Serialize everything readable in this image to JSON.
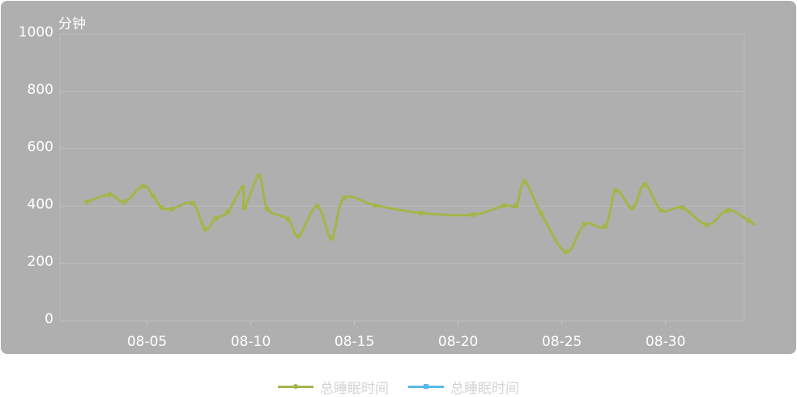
{
  "chart_data": {
    "type": "line",
    "title": "",
    "ylabel": "分钟",
    "xlabel": "",
    "ylim": [
      0,
      1000
    ],
    "yticks": [
      0,
      200,
      400,
      600,
      800,
      1000
    ],
    "xlim": [
      0.8,
      33.8
    ],
    "xticks": [
      {
        "label": "08-05",
        "x": 5
      },
      {
        "label": "08-10",
        "x": 10
      },
      {
        "label": "08-15",
        "x": 15
      },
      {
        "label": "08-20",
        "x": 20
      },
      {
        "label": "08-25",
        "x": 25
      },
      {
        "label": "08-30",
        "x": 30
      }
    ],
    "series": [
      {
        "name": "总睡眠时间",
        "color": "#a2b64a",
        "marker": "circle",
        "points": [
          [
            2.1,
            415
          ],
          [
            3.2,
            440
          ],
          [
            3.9,
            415
          ],
          [
            4.8,
            470
          ],
          [
            5.3,
            435
          ],
          [
            5.7,
            395
          ],
          [
            6.2,
            390
          ],
          [
            7.2,
            410
          ],
          [
            7.8,
            320
          ],
          [
            8.3,
            357
          ],
          [
            8.9,
            380
          ],
          [
            9.6,
            465
          ],
          [
            9.7,
            395
          ],
          [
            10.4,
            505
          ],
          [
            10.8,
            390
          ],
          [
            11.8,
            355
          ],
          [
            12.3,
            295
          ],
          [
            13.2,
            400
          ],
          [
            13.9,
            288
          ],
          [
            14.5,
            428
          ],
          [
            16.0,
            403
          ],
          [
            18.2,
            376
          ],
          [
            20.7,
            370
          ],
          [
            22.2,
            402
          ],
          [
            22.8,
            402
          ],
          [
            23.2,
            485
          ],
          [
            24.0,
            375
          ],
          [
            25.2,
            240
          ],
          [
            26.1,
            337
          ],
          [
            27.1,
            330
          ],
          [
            27.6,
            455
          ],
          [
            28.4,
            393
          ],
          [
            29.0,
            475
          ],
          [
            29.8,
            385
          ],
          [
            30.8,
            395
          ],
          [
            32.0,
            335
          ],
          [
            33.0,
            385
          ],
          [
            34.0,
            350
          ],
          [
            34.3,
            336
          ]
        ]
      },
      {
        "name": "总睡眠时间",
        "color": "#5ab8ec",
        "marker": "square",
        "points": []
      }
    ]
  }
}
